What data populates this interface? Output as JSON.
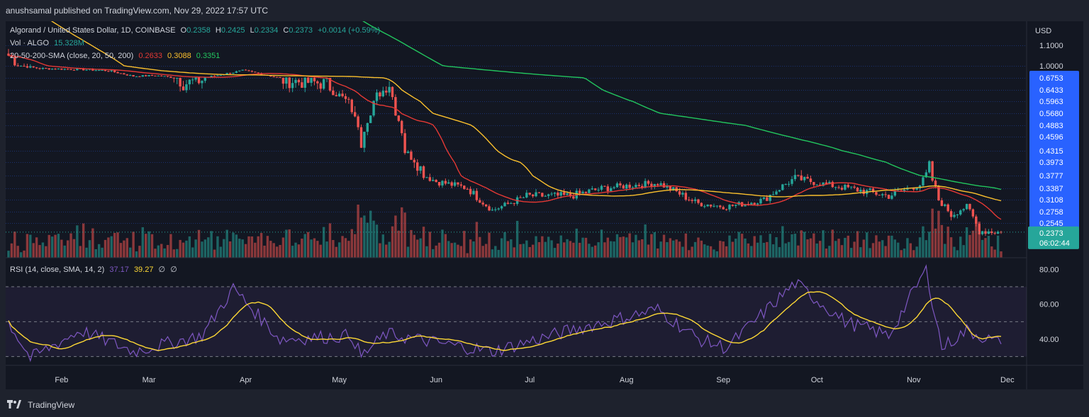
{
  "header": {
    "publish_text": "anushsamal published on TradingView.com, Nov 29, 2022 17:57 UTC"
  },
  "legend": {
    "symbol": "Algorand / United States Dollar, 1D, COINBASE",
    "o_label": "O",
    "o_value": "0.2358",
    "h_label": "H",
    "h_value": "0.2425",
    "l_label": "L",
    "l_value": "0.2334",
    "c_label": "C",
    "c_value": "0.2373",
    "change": "+0.0014 (+0.59%)",
    "vol_label": "Vol · ALGO",
    "vol_value": "15.328M",
    "sma_label": "20-50-200-SMA (close, 20, 50, 200)",
    "sma20": "0.2633",
    "sma50": "0.3088",
    "sma200": "0.3351",
    "rsi_label": "RSI (14, close, SMA, 14, 2)",
    "rsi_value": "37.17",
    "rsi_sma": "39.27",
    "rsi_extra1": "∅",
    "rsi_extra2": "∅"
  },
  "colors": {
    "up": "#26a69a",
    "down": "#ef5350",
    "sma20": "#e53935",
    "sma50": "#fbc02d",
    "sma200": "#22c55e",
    "rsi": "#7e57c2",
    "rsi_sma": "#fdd835",
    "price_tag": "#2962ff"
  },
  "price_axis": {
    "currency": "USD",
    "labels": [
      "1.1000",
      "1.0000",
      "0.6753",
      "0.6433",
      "0.5963",
      "0.5680",
      "0.4883",
      "0.4596",
      "0.4315",
      "0.3973",
      "0.3777",
      "0.3387",
      "0.3108",
      "0.2758",
      "0.2545"
    ],
    "last_price": "0.2373",
    "countdown": "06:02:44"
  },
  "rsi_axis": {
    "labels": [
      "80.00",
      "60.00",
      "40.00"
    ]
  },
  "time_axis": {
    "labels": [
      "Feb",
      "Mar",
      "Apr",
      "May",
      "Jun",
      "Jul",
      "Aug",
      "Sep",
      "Oct",
      "Nov",
      "Dec"
    ]
  },
  "footer": {
    "brand": "TradingView"
  },
  "chart_data": {
    "type": "candlestick",
    "title": "Algorand / United States Dollar, 1D, COINBASE",
    "x_start": "2022-01-15",
    "x_end": "2022-11-29",
    "ylim": [
      0.22,
      1.15
    ],
    "price_levels": [
      1.1,
      1.0,
      0.6753,
      0.6433,
      0.5963,
      0.568,
      0.4883,
      0.4596,
      0.4315,
      0.3973,
      0.3777,
      0.3387,
      0.3108,
      0.2758,
      0.2545
    ],
    "close_anchors": [
      {
        "date": "2022-01-15",
        "close": 1.05
      },
      {
        "date": "2022-01-25",
        "close": 0.93
      },
      {
        "date": "2022-02-08",
        "close": 0.9
      },
      {
        "date": "2022-02-16",
        "close": 0.87
      },
      {
        "date": "2022-02-24",
        "close": 0.72
      },
      {
        "date": "2022-03-03",
        "close": 0.74
      },
      {
        "date": "2022-03-12",
        "close": 0.66
      },
      {
        "date": "2022-03-18",
        "close": 0.67
      },
      {
        "date": "2022-03-31",
        "close": 0.87
      },
      {
        "date": "2022-04-05",
        "close": 0.8
      },
      {
        "date": "2022-04-12",
        "close": 0.67
      },
      {
        "date": "2022-04-27",
        "close": 0.66
      },
      {
        "date": "2022-05-05",
        "close": 0.58
      },
      {
        "date": "2022-05-08",
        "close": 0.45
      },
      {
        "date": "2022-05-13",
        "close": 0.62
      },
      {
        "date": "2022-05-17",
        "close": 0.66
      },
      {
        "date": "2022-05-22",
        "close": 0.43
      },
      {
        "date": "2022-05-28",
        "close": 0.38
      },
      {
        "date": "2022-06-01",
        "close": 0.36
      },
      {
        "date": "2022-06-11",
        "close": 0.34
      },
      {
        "date": "2022-06-19",
        "close": 0.28
      },
      {
        "date": "2022-06-30",
        "close": 0.32
      },
      {
        "date": "2022-07-14",
        "close": 0.32
      },
      {
        "date": "2022-07-25",
        "close": 0.34
      },
      {
        "date": "2022-08-11",
        "close": 0.355
      },
      {
        "date": "2022-08-24",
        "close": 0.3
      },
      {
        "date": "2022-09-02",
        "close": 0.29
      },
      {
        "date": "2022-09-14",
        "close": 0.31
      },
      {
        "date": "2022-09-24",
        "close": 0.37
      },
      {
        "date": "2022-10-04",
        "close": 0.35
      },
      {
        "date": "2022-10-24",
        "close": 0.32
      },
      {
        "date": "2022-11-03",
        "close": 0.35
      },
      {
        "date": "2022-11-06",
        "close": 0.39
      },
      {
        "date": "2022-11-09",
        "close": 0.31
      },
      {
        "date": "2022-11-13",
        "close": 0.27
      },
      {
        "date": "2022-11-18",
        "close": 0.29
      },
      {
        "date": "2022-11-22",
        "close": 0.24
      },
      {
        "date": "2022-11-29",
        "close": 0.2373
      }
    ],
    "sma_last": {
      "sma20": 0.2633,
      "sma50": 0.3088,
      "sma200": 0.3351
    },
    "rsi": {
      "ylim": [
        25,
        85
      ],
      "bands": [
        70,
        50,
        30
      ],
      "last": 37.17,
      "sma_last": 39.27,
      "anchors": [
        {
          "date": "2022-01-15",
          "rsi": 50
        },
        {
          "date": "2022-01-22",
          "rsi": 29
        },
        {
          "date": "2022-02-07",
          "rsi": 45
        },
        {
          "date": "2022-02-24",
          "rsi": 33
        },
        {
          "date": "2022-03-18",
          "rsi": 42
        },
        {
          "date": "2022-03-28",
          "rsi": 69
        },
        {
          "date": "2022-04-12",
          "rsi": 40
        },
        {
          "date": "2022-05-05",
          "rsi": 42
        },
        {
          "date": "2022-05-08",
          "rsi": 30
        },
        {
          "date": "2022-05-16",
          "rsi": 43
        },
        {
          "date": "2022-06-01",
          "rsi": 38
        },
        {
          "date": "2022-06-19",
          "rsi": 33
        },
        {
          "date": "2022-07-14",
          "rsi": 45
        },
        {
          "date": "2022-08-11",
          "rsi": 57
        },
        {
          "date": "2022-08-24",
          "rsi": 40
        },
        {
          "date": "2022-09-02",
          "rsi": 35
        },
        {
          "date": "2022-09-24",
          "rsi": 72
        },
        {
          "date": "2022-10-10",
          "rsi": 50
        },
        {
          "date": "2022-10-24",
          "rsi": 42
        },
        {
          "date": "2022-11-05",
          "rsi": 80
        },
        {
          "date": "2022-11-10",
          "rsi": 35
        },
        {
          "date": "2022-11-18",
          "rsi": 45
        },
        {
          "date": "2022-11-29",
          "rsi": 37.17
        }
      ]
    },
    "volume": {
      "unit": "M ALGO",
      "last": 15.328
    }
  }
}
